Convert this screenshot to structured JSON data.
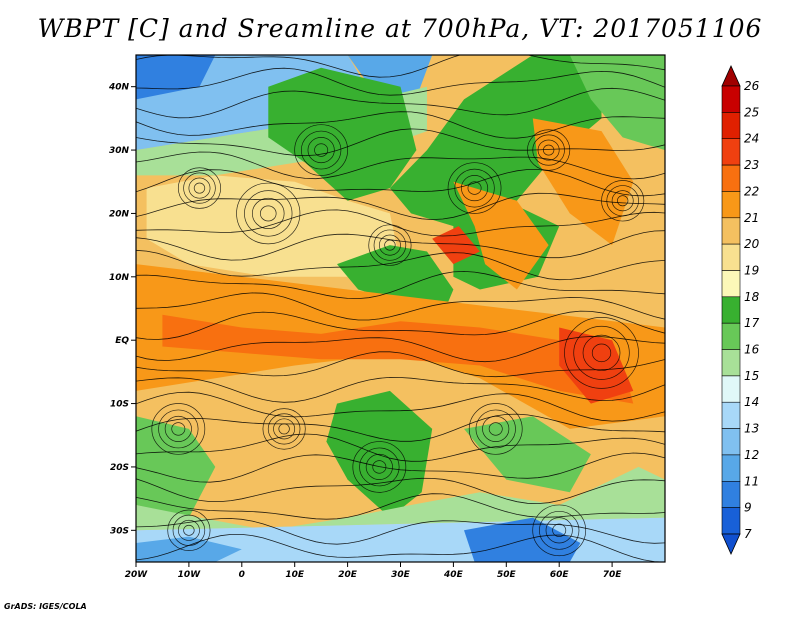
{
  "title": "WBPT [C] and Sreamline at 700hPa, VT: 2017051106",
  "credit": "GrADS: IGES/COLA",
  "map": {
    "lon_range": [
      -20,
      80
    ],
    "lat_range": [
      -35,
      45
    ],
    "lon_ticks": [
      {
        "value": -20,
        "label": "20W"
      },
      {
        "value": -10,
        "label": "10W"
      },
      {
        "value": 0,
        "label": "0"
      },
      {
        "value": 10,
        "label": "10E"
      },
      {
        "value": 20,
        "label": "20E"
      },
      {
        "value": 30,
        "label": "30E"
      },
      {
        "value": 40,
        "label": "40E"
      },
      {
        "value": 50,
        "label": "50E"
      },
      {
        "value": 60,
        "label": "60E"
      },
      {
        "value": 70,
        "label": "70E"
      }
    ],
    "lat_ticks": [
      {
        "value": 40,
        "label": "40N"
      },
      {
        "value": 30,
        "label": "30N"
      },
      {
        "value": 20,
        "label": "20N"
      },
      {
        "value": 10,
        "label": "10N"
      },
      {
        "value": 0,
        "label": "EQ"
      },
      {
        "value": -10,
        "label": "10S"
      },
      {
        "value": -20,
        "label": "20S"
      },
      {
        "value": -30,
        "label": "30S"
      }
    ]
  },
  "colorbar": {
    "levels": [
      {
        "label": "26",
        "color": "#a00000"
      },
      {
        "label": "25",
        "color": "#c80000"
      },
      {
        "label": "24",
        "color": "#e02000"
      },
      {
        "label": "23",
        "color": "#f04010"
      },
      {
        "label": "22",
        "color": "#f87010"
      },
      {
        "label": "21",
        "color": "#f89818"
      },
      {
        "label": "20",
        "color": "#f4c060"
      },
      {
        "label": "19",
        "color": "#f8e090"
      },
      {
        "label": "18",
        "color": "#fcf8b8"
      },
      {
        "label": "17",
        "color": "#38b030"
      },
      {
        "label": "16",
        "color": "#68c858"
      },
      {
        "label": "15",
        "color": "#a8e098"
      },
      {
        "label": "14",
        "color": "#e0f8f8"
      },
      {
        "label": "13",
        "color": "#a8d8f8"
      },
      {
        "label": "12",
        "color": "#80c0f0"
      },
      {
        "label": "11",
        "color": "#58a8e8"
      },
      {
        "label": "9",
        "color": "#3080e0"
      },
      {
        "label": "7",
        "color": "#1860d8"
      }
    ],
    "bottom_color": "#1050d0"
  },
  "temperature_field": {
    "background_color": "#f4c060",
    "regions": [
      {
        "color": "#80c0f0",
        "points": [
          [
            -20,
            45
          ],
          [
            20,
            45
          ],
          [
            25,
            38
          ],
          [
            10,
            34
          ],
          [
            -5,
            32
          ],
          [
            -20,
            30
          ]
        ]
      },
      {
        "color": "#3080e0",
        "points": [
          [
            -20,
            45
          ],
          [
            -5,
            45
          ],
          [
            -8,
            40
          ],
          [
            -20,
            38
          ]
        ]
      },
      {
        "color": "#58a8e8",
        "points": [
          [
            20,
            45
          ],
          [
            36,
            45
          ],
          [
            32,
            36
          ],
          [
            26,
            38
          ]
        ]
      },
      {
        "color": "#a8e098",
        "points": [
          [
            -20,
            30
          ],
          [
            -5,
            32
          ],
          [
            10,
            34
          ],
          [
            25,
            38
          ],
          [
            35,
            40
          ],
          [
            35,
            33
          ],
          [
            25,
            30
          ],
          [
            10,
            28
          ],
          [
            -5,
            26
          ],
          [
            -20,
            26
          ]
        ]
      },
      {
        "color": "#38b030",
        "points": [
          [
            5,
            40
          ],
          [
            15,
            43
          ],
          [
            30,
            40
          ],
          [
            33,
            30
          ],
          [
            28,
            24
          ],
          [
            20,
            22
          ],
          [
            12,
            28
          ],
          [
            5,
            32
          ]
        ]
      },
      {
        "color": "#38b030",
        "points": [
          [
            28,
            24
          ],
          [
            35,
            30
          ],
          [
            42,
            38
          ],
          [
            55,
            45
          ],
          [
            68,
            45
          ],
          [
            68,
            35
          ],
          [
            58,
            28
          ],
          [
            50,
            20
          ],
          [
            40,
            18
          ],
          [
            32,
            20
          ]
        ]
      },
      {
        "color": "#68c858",
        "points": [
          [
            62,
            45
          ],
          [
            80,
            45
          ],
          [
            80,
            30
          ],
          [
            72,
            32
          ],
          [
            66,
            38
          ]
        ]
      },
      {
        "color": "#f8e090",
        "points": [
          [
            -18,
            24
          ],
          [
            -5,
            26
          ],
          [
            10,
            25
          ],
          [
            20,
            22
          ],
          [
            28,
            20
          ],
          [
            30,
            12
          ],
          [
            20,
            10
          ],
          [
            5,
            10
          ],
          [
            -10,
            12
          ],
          [
            -18,
            16
          ]
        ]
      },
      {
        "color": "#38b030",
        "points": [
          [
            18,
            12
          ],
          [
            28,
            15
          ],
          [
            35,
            14
          ],
          [
            40,
            8
          ],
          [
            38,
            4
          ],
          [
            30,
            6
          ],
          [
            22,
            8
          ]
        ]
      },
      {
        "color": "#38b030",
        "points": [
          [
            40,
            18
          ],
          [
            50,
            22
          ],
          [
            60,
            18
          ],
          [
            56,
            10
          ],
          [
            45,
            8
          ],
          [
            40,
            10
          ]
        ]
      },
      {
        "color": "#f89818",
        "points": [
          [
            40,
            25
          ],
          [
            52,
            22
          ],
          [
            58,
            15
          ],
          [
            52,
            8
          ],
          [
            46,
            12
          ],
          [
            44,
            18
          ]
        ]
      },
      {
        "color": "#f89818",
        "points": [
          [
            55,
            35
          ],
          [
            68,
            33
          ],
          [
            74,
            25
          ],
          [
            70,
            15
          ],
          [
            62,
            20
          ],
          [
            56,
            28
          ]
        ]
      },
      {
        "color": "#f89818",
        "points": [
          [
            -20,
            12
          ],
          [
            0,
            10
          ],
          [
            20,
            8
          ],
          [
            40,
            6
          ],
          [
            60,
            4
          ],
          [
            80,
            2
          ],
          [
            80,
            -12
          ],
          [
            62,
            -14
          ],
          [
            45,
            -6
          ],
          [
            30,
            -2
          ],
          [
            10,
            -4
          ],
          [
            -5,
            -6
          ],
          [
            -20,
            -8
          ]
        ]
      },
      {
        "color": "#f87010",
        "points": [
          [
            -15,
            4
          ],
          [
            0,
            2
          ],
          [
            15,
            1
          ],
          [
            30,
            3
          ],
          [
            45,
            2
          ],
          [
            60,
            0
          ],
          [
            72,
            -4
          ],
          [
            74,
            -10
          ],
          [
            60,
            -8
          ],
          [
            45,
            -4
          ],
          [
            30,
            -3
          ],
          [
            15,
            -3
          ],
          [
            0,
            -2
          ],
          [
            -15,
            -1
          ]
        ]
      },
      {
        "color": "#f04010",
        "points": [
          [
            36,
            16
          ],
          [
            41,
            18
          ],
          [
            45,
            14
          ],
          [
            40,
            12
          ]
        ]
      },
      {
        "color": "#f04010",
        "points": [
          [
            60,
            2
          ],
          [
            70,
            0
          ],
          [
            74,
            -8
          ],
          [
            66,
            -10
          ],
          [
            60,
            -4
          ]
        ]
      },
      {
        "color": "#38b030",
        "points": [
          [
            18,
            -10
          ],
          [
            28,
            -8
          ],
          [
            36,
            -14
          ],
          [
            34,
            -24
          ],
          [
            28,
            -28
          ],
          [
            20,
            -22
          ],
          [
            16,
            -16
          ]
        ]
      },
      {
        "color": "#68c858",
        "points": [
          [
            -20,
            -12
          ],
          [
            -10,
            -14
          ],
          [
            -5,
            -20
          ],
          [
            -10,
            -28
          ],
          [
            -20,
            -26
          ]
        ]
      },
      {
        "color": "#68c858",
        "points": [
          [
            42,
            -14
          ],
          [
            55,
            -12
          ],
          [
            66,
            -18
          ],
          [
            62,
            -24
          ],
          [
            50,
            -22
          ]
        ]
      },
      {
        "color": "#a8e098",
        "points": [
          [
            -20,
            -26
          ],
          [
            -8,
            -28
          ],
          [
            5,
            -30
          ],
          [
            20,
            -28
          ],
          [
            32,
            -26
          ],
          [
            45,
            -24
          ],
          [
            60,
            -26
          ],
          [
            75,
            -20
          ],
          [
            80,
            -22
          ],
          [
            80,
            -28
          ],
          [
            -20,
            -30
          ]
        ]
      },
      {
        "color": "#a8d8f8",
        "points": [
          [
            -20,
            -30
          ],
          [
            80,
            -28
          ],
          [
            80,
            -35
          ],
          [
            -20,
            -35
          ]
        ]
      },
      {
        "color": "#3080e0",
        "points": [
          [
            42,
            -30
          ],
          [
            55,
            -28
          ],
          [
            64,
            -32
          ],
          [
            62,
            -35
          ],
          [
            44,
            -35
          ]
        ]
      },
      {
        "color": "#58a8e8",
        "points": [
          [
            -20,
            -32
          ],
          [
            -10,
            -31
          ],
          [
            0,
            -33
          ],
          [
            -5,
            -35
          ],
          [
            -20,
            -35
          ]
        ]
      }
    ]
  }
}
